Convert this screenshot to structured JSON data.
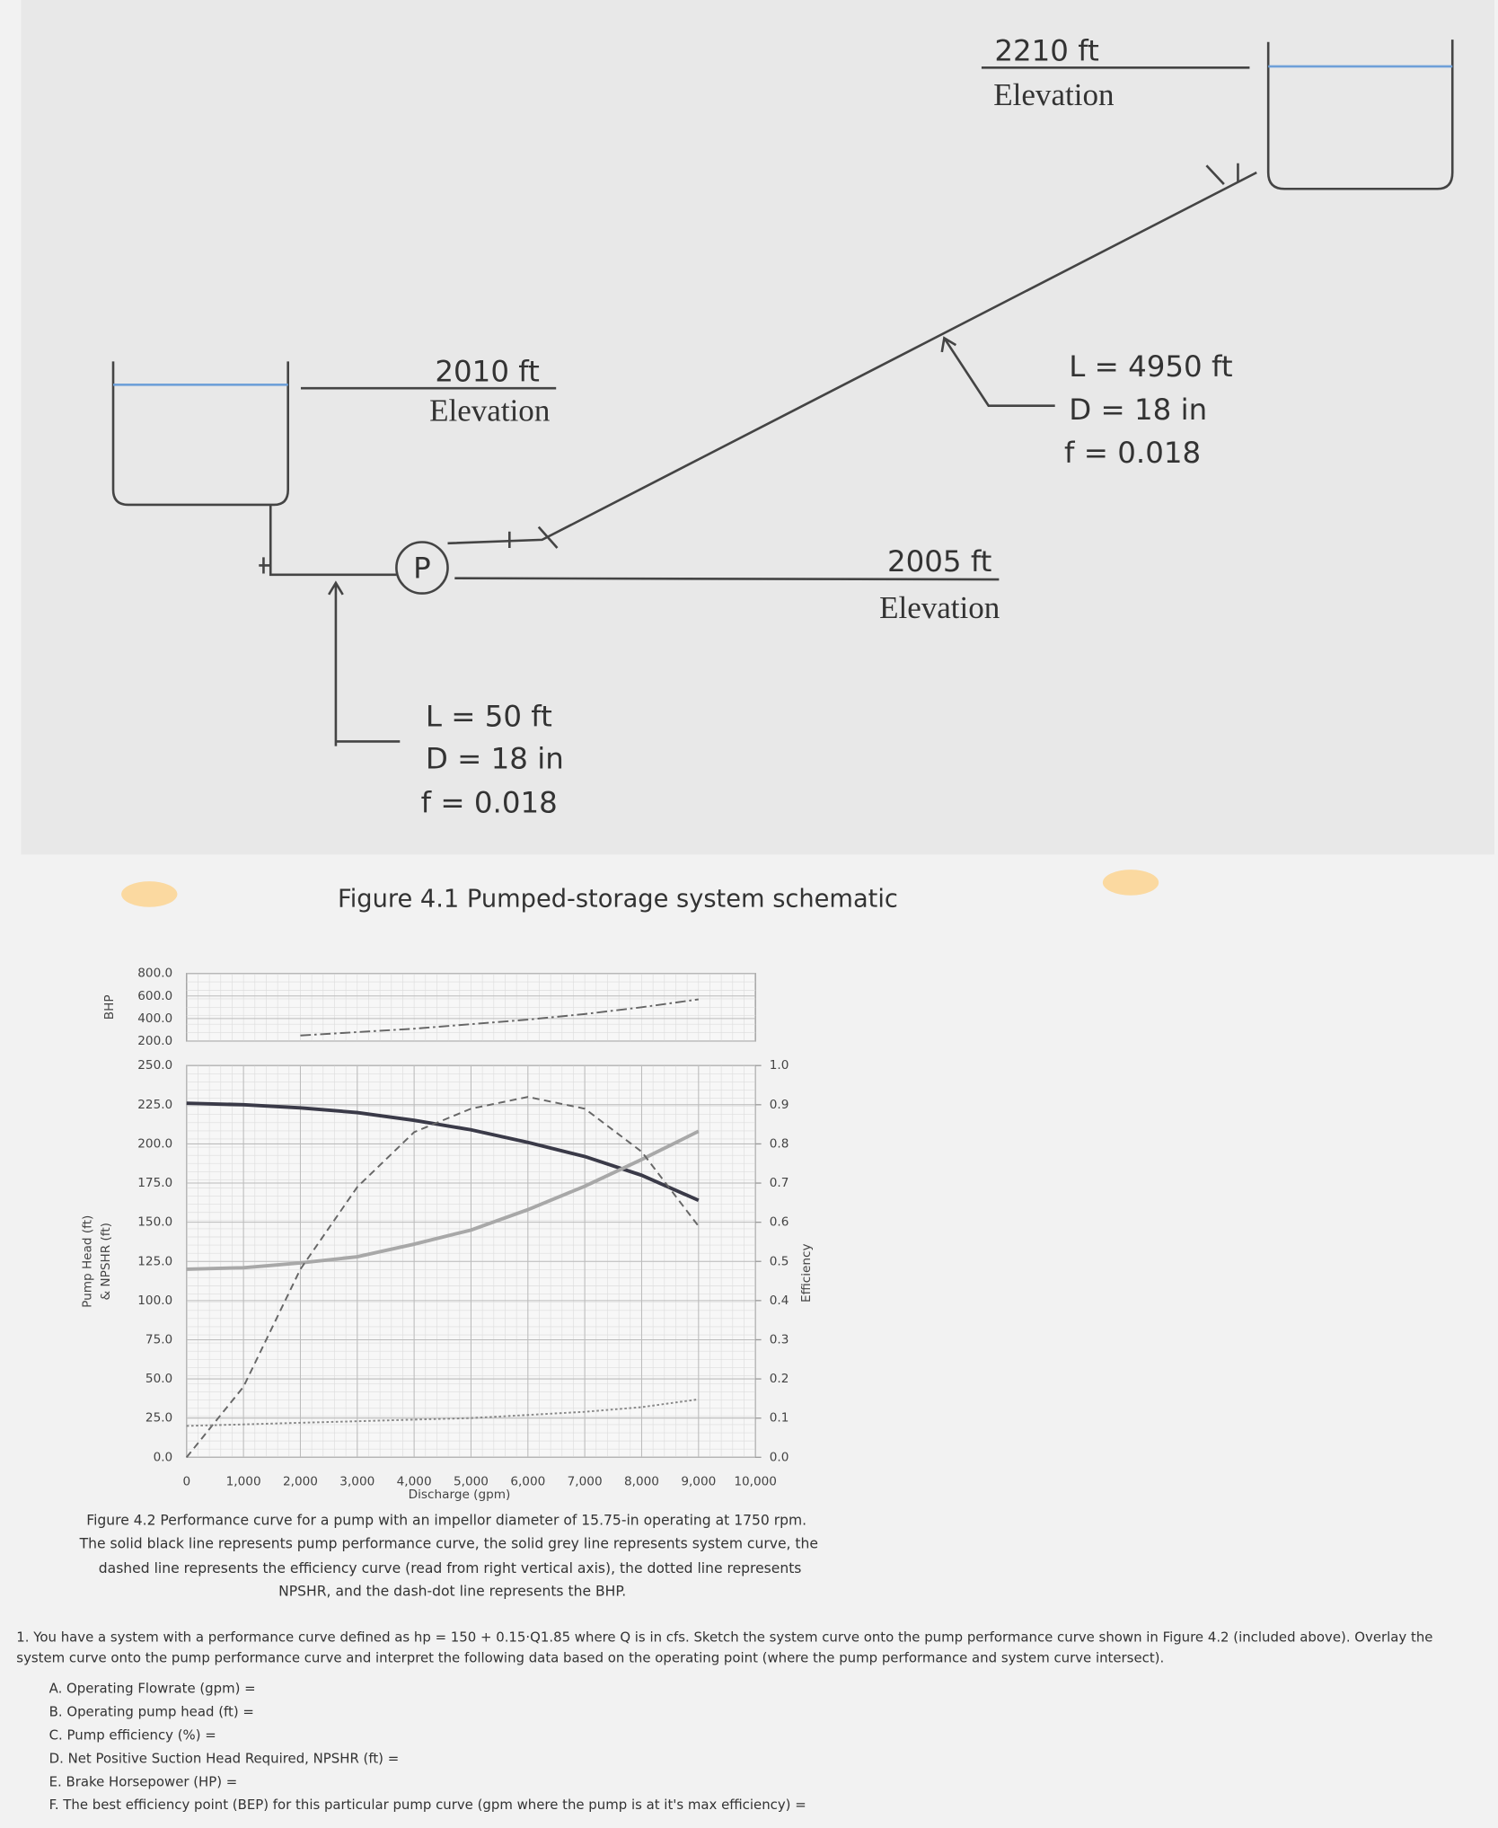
{
  "schematic": {
    "upper_elevation": "2210 ft",
    "upper_elevation_label": "Elevation",
    "lower_elevation": "2010 ft",
    "lower_elevation_label": "Elevation",
    "pump_elevation": "2005 ft",
    "pump_elevation_label": "Elevation",
    "pump": "P",
    "discharge_pipe": [
      "L = 4950 ft",
      "D = 18 in",
      "f = 0.018"
    ],
    "suction_pipe": [
      "L = 50 ft",
      "D = 18 in",
      "f = 0.018"
    ],
    "caption": "Figure 4.1 Pumped-storage system schematic"
  },
  "chart_data": [
    {
      "type": "line",
      "x": [
        0,
        1000,
        2000,
        3000,
        4000,
        5000,
        6000,
        7000,
        8000,
        9000
      ],
      "xlim": [
        0,
        10000
      ],
      "xticks": [
        0,
        {
          "value": 1000,
          "label": "1,000"
        },
        {
          "value": 2000,
          "label": "2,000"
        },
        {
          "value": 3000,
          "label": "3,000"
        },
        {
          "value": 4000,
          "label": "4,000"
        },
        {
          "value": 5000,
          "label": "5,000"
        },
        {
          "value": 6000,
          "label": "6,000"
        },
        {
          "value": 7000,
          "label": "7,000"
        },
        {
          "value": 8000,
          "label": "8,000"
        },
        {
          "value": 9000,
          "label": "9,000"
        },
        {
          "value": 10000,
          "label": "10,000"
        }
      ],
      "xlabel": "Discharge (gpm)",
      "ylabel": [
        "Pump Head (ft)",
        "& NPSHR (ft)"
      ],
      "ylim": [
        0,
        250
      ],
      "yticks": [
        {
          "value": 0,
          "label": "0.0"
        },
        {
          "value": 25,
          "label": "25.0"
        },
        {
          "value": 50,
          "label": "50.0"
        },
        {
          "value": 75,
          "label": "75.0"
        },
        {
          "value": 100,
          "label": "100.0"
        },
        {
          "value": 125,
          "label": "125.0"
        },
        {
          "value": 150,
          "label": "150.0"
        },
        {
          "value": 175,
          "label": "175.0"
        },
        {
          "value": 200,
          "label": "200.0"
        },
        {
          "value": 225,
          "label": "225.0"
        },
        {
          "value": 250,
          "label": "250.0"
        }
      ],
      "y2label": "Efficiency",
      "y2lim": [
        0,
        1
      ],
      "y2ticks": [
        {
          "value": 0,
          "label": "0.0"
        },
        0.1,
        0.2,
        0.3,
        0.4,
        0.5,
        0.6,
        0.7,
        0.8,
        0.9,
        {
          "value": 1,
          "label": "1.0"
        }
      ],
      "grid": true,
      "series": [
        {
          "color": "#3a3a48",
          "style": "solid",
          "values": [
            226,
            225,
            223,
            220,
            215,
            209,
            201,
            192,
            180,
            164
          ]
        },
        {
          "color": "#a8a8a8",
          "style": "solid",
          "values": [
            120,
            121,
            124,
            128,
            136,
            145,
            158,
            173,
            190,
            208
          ]
        },
        {
          "color": "#666666",
          "style": "dashed",
          "axis": "y2",
          "values": [
            0,
            0.18,
            0.48,
            0.69,
            0.83,
            0.89,
            0.92,
            0.89,
            0.78,
            0.59
          ]
        },
        {
          "color": "#888888",
          "style": "dotted",
          "values": [
            20,
            21,
            22,
            23,
            24,
            25,
            27,
            29,
            32,
            37
          ]
        }
      ]
    },
    {
      "type": "line",
      "x": [
        0,
        1000,
        2000,
        3000,
        4000,
        5000,
        6000,
        7000,
        8000,
        9000
      ],
      "xlim": [
        0,
        10000
      ],
      "ylabel": "BHP",
      "ylim": [
        200,
        800
      ],
      "yticks": [
        {
          "value": 200,
          "label": "200.0"
        },
        {
          "value": 400,
          "label": "400.0"
        },
        {
          "value": 600,
          "label": "600.0"
        },
        {
          "value": 800,
          "label": "800.0"
        }
      ],
      "grid": true,
      "series": [
        {
          "color": "#666666",
          "style": "dash-dot",
          "values": [
            null,
            null,
            250,
            280,
            310,
            350,
            390,
            440,
            500,
            570
          ]
        }
      ]
    }
  ],
  "figure_caption": [
    "Figure 4.2 Performance curve for a pump with an impellor diameter of 15.75-in operating at 1750 rpm.",
    "The solid black line represents pump performance curve, the solid grey line represents system curve, the",
    "dashed line represents the efficiency curve (read from right vertical axis), the dotted line represents",
    "NPSHR, and the dash-dot line represents the BHP."
  ],
  "question": {
    "text": [
      "1. You have a system with a performance curve defined as hp = 150 + 0.15·Q1.85 where Q is in cfs. Sketch the system curve onto the pump performance curve shown in Figure 4.2 (included above). Overlay the",
      "system curve onto the pump performance curve and interpret the following data based on the operating point (where the pump performance and system curve intersect)."
    ],
    "items": [
      "A. Operating Flowrate (gpm) =",
      "B. Operating pump head (ft) =",
      "C. Pump efficiency (%) =",
      "D. Net Positive Suction Head Required, NPSHR (ft) =",
      "E. Brake Horsepower (HP) =",
      "F. The best efficiency point (BEP) for this particular pump curve (gpm where the pump is at it's max efficiency) ="
    ]
  }
}
